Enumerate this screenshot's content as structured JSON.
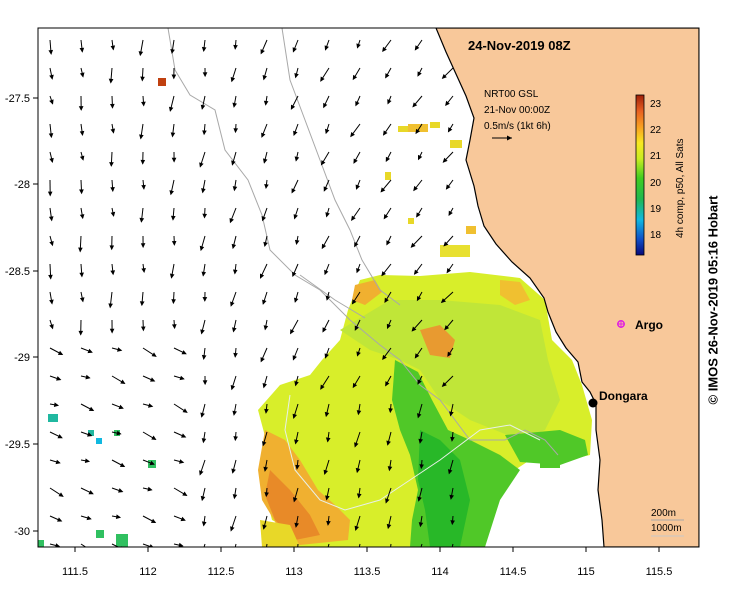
{
  "title": "24-Nov-2019 08Z",
  "current_info": {
    "source": "NRT00 GSL",
    "date": "21-Nov 00:00Z",
    "scale": "0.5m/s (1kt 6h)"
  },
  "colorbar": {
    "label": "4h comp, p50, All Sats",
    "ticks": [
      "23",
      "22",
      "21",
      "20",
      "19",
      "18"
    ],
    "colors": [
      "#08087a",
      "#1060d0",
      "#10b8e0",
      "#30c060",
      "#20c020",
      "#80e020",
      "#d8f020",
      "#f8e020",
      "#f8a020",
      "#e86020",
      "#b83010"
    ]
  },
  "axes": {
    "x_ticks": [
      "111.5",
      "112",
      "112.5",
      "113",
      "113.5",
      "114",
      "114.5",
      "115",
      "115.5"
    ],
    "y_ticks": [
      "-27.5",
      "-28",
      "-28.5",
      "-29",
      "-29.5",
      "-30"
    ]
  },
  "places": {
    "dongara": "Dongara",
    "argo": "Argo"
  },
  "contour_legend": {
    "line1": "200m",
    "line2": "1000m"
  },
  "credit": "© IMOS 26-Nov-2019 05:16 Hobart",
  "colors": {
    "land": "#f8c89a",
    "coast": "#000000",
    "argo": "#e020e0",
    "bathy200": "#a0a0a0",
    "bathy1000": "#c8c8c8"
  }
}
